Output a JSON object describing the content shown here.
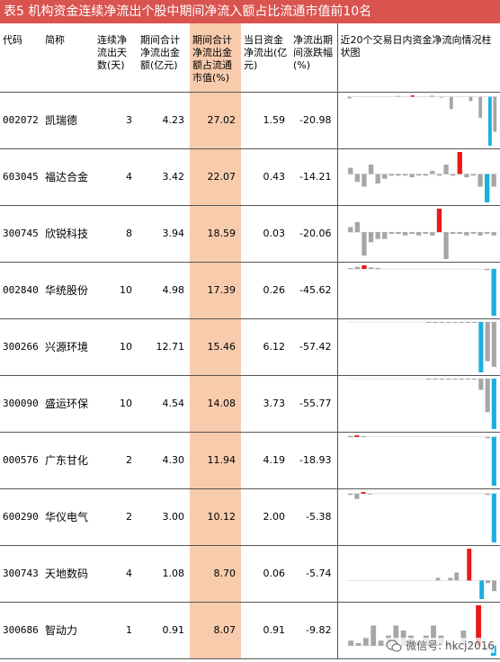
{
  "title": "表5  机构资金连续净流出个股中期间净流入额占比流通市值前10名",
  "headers": {
    "code": "代码",
    "name": "简称",
    "days": "连续净流出天数(天)",
    "total": "期间合计净流出金额(亿元)",
    "ratio": "期间合计净流出金额占流通市值(%)",
    "today": "当日资金净流出(亿元)",
    "change": "净流出期间涨跌幅(%)",
    "chart": "近20个交易日内资金净流向情况柱状图"
  },
  "colors": {
    "title_bg": "#d9534f",
    "highlight": "#f8cbad",
    "neg_bar": "#1ab0e0",
    "pos_bar": "#e8191a",
    "gray_bar": "#a6a6a6"
  },
  "rows": [
    {
      "code": "002072",
      "name": "凯瑞德",
      "days": "3",
      "total": "4.23",
      "ratio": "27.02",
      "today": "1.59",
      "change": "-20.98",
      "bars": [
        -0.5,
        0,
        0,
        0,
        0,
        0,
        0,
        0,
        0,
        0,
        0.1,
        0,
        0,
        0.4,
        0,
        0,
        0,
        0.3,
        0,
        -0.2,
        0,
        -3.5,
        0,
        0,
        0,
        -1.2,
        0,
        -6,
        0,
        -14,
        -10
      ]
    },
    {
      "code": "603045",
      "name": "福达合金",
      "days": "4",
      "total": "3.42",
      "ratio": "22.07",
      "today": "0.43",
      "change": "-14.21",
      "bars": [
        2,
        -2.5,
        -4,
        3,
        -3,
        -1.5,
        -0.5,
        -0.5,
        -0.5,
        -1,
        -0.5,
        -0.5,
        1,
        -0.5,
        3,
        -0.5,
        7,
        -1,
        -0.5,
        -4,
        -9,
        -4
      ]
    },
    {
      "code": "300745",
      "name": "欣锐科技",
      "days": "8",
      "total": "3.94",
      "ratio": "18.59",
      "today": "0.03",
      "change": "-20.06",
      "bars": [
        1.5,
        3,
        -7,
        -3,
        -2,
        -2,
        -0.5,
        -0.5,
        -1,
        -0.5,
        -1,
        -0.5,
        -1,
        7,
        -8,
        -0.5,
        -0.5,
        -1,
        -0.5,
        -1,
        -0.5,
        -1
      ]
    },
    {
      "code": "002840",
      "name": "华统股份",
      "days": "10",
      "total": "4.98",
      "ratio": "17.39",
      "today": "0.26",
      "change": "-45.62",
      "bars": [
        0.3,
        0.8,
        1.4,
        0.6,
        0.4,
        0,
        0,
        0,
        0,
        0,
        0,
        0,
        0,
        0,
        0,
        0,
        0,
        0,
        0,
        0,
        -0.5,
        -18
      ]
    },
    {
      "code": "300266",
      "name": "兴源环境",
      "days": "10",
      "total": "12.71",
      "ratio": "15.46",
      "today": "6.12",
      "change": "-57.42",
      "bars": [
        0,
        0,
        0,
        0,
        0,
        0,
        0,
        0,
        0,
        0,
        0,
        0,
        -0.3,
        -0.3,
        -0.3,
        -0.3,
        -0.3,
        -0.3,
        -0.3,
        -0.3,
        -18,
        -14,
        -16
      ]
    },
    {
      "code": "300090",
      "name": "盛运环保",
      "days": "10",
      "total": "4.54",
      "ratio": "14.08",
      "today": "3.73",
      "change": "-55.77",
      "bars": [
        0,
        0,
        0,
        0,
        0,
        0,
        0,
        0,
        0,
        0,
        0,
        0,
        -0.3,
        -0.3,
        -0.3,
        -0.3,
        -0.3,
        -0.3,
        -0.3,
        -0.3,
        -4,
        -12,
        -18
      ]
    },
    {
      "code": "000576",
      "name": "广东甘化",
      "days": "2",
      "total": "4.30",
      "ratio": "11.94",
      "today": "4.19",
      "change": "-18.93",
      "bars": [
        0.4,
        0.6,
        0.3,
        0,
        0,
        0,
        0,
        0,
        0,
        0,
        0,
        0,
        0,
        0,
        0,
        0,
        0,
        0,
        0,
        0,
        0,
        -0.5,
        -18
      ]
    },
    {
      "code": "600290",
      "name": "华仪电气",
      "days": "2",
      "total": "3.00",
      "ratio": "10.12",
      "today": "2.00",
      "change": "-5.38",
      "bars": [
        -0.5,
        -2,
        0.6,
        -0.3,
        0,
        0,
        0,
        0,
        0,
        0,
        0,
        0,
        0,
        0,
        0,
        0,
        0,
        0,
        0,
        0,
        0,
        -0.5,
        -18
      ]
    },
    {
      "code": "300743",
      "name": "天地数码",
      "days": "4",
      "total": "1.08",
      "ratio": "8.70",
      "today": "0.06",
      "change": "-5.74",
      "bars": [
        0,
        0,
        0,
        0,
        0,
        0,
        0,
        0,
        0,
        0,
        0,
        0,
        0,
        0,
        1,
        0,
        1,
        3,
        0,
        12,
        0,
        -7,
        -1,
        -4
      ]
    },
    {
      "code": "300686",
      "name": "智动力",
      "days": "1",
      "total": "0.91",
      "ratio": "8.07",
      "today": "0.91",
      "change": "-9.82",
      "bars": [
        1,
        0.5,
        1.5,
        4,
        1,
        2,
        4,
        3,
        2,
        1,
        2,
        4,
        2,
        1,
        -1,
        3,
        1,
        8,
        -1,
        -2
      ]
    }
  ],
  "watermark": "微信号: hkcj2016"
}
